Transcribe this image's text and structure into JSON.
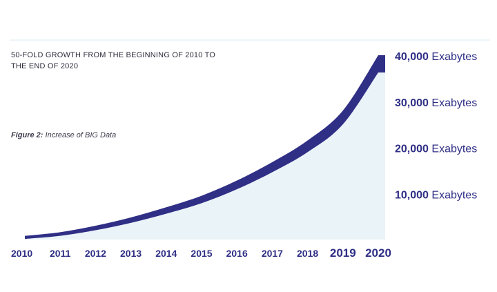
{
  "headline": "50-FOLD GROWTH FROM THE BEGINNING OF 2010 TO THE END OF 2020",
  "caption": {
    "label": "Figure 2:",
    "text": "Increase of BIG Data"
  },
  "colors": {
    "band": "#2f2f86",
    "fill": "#eaf3f8",
    "label": "#2f2f86",
    "divider": "#dce8f0"
  },
  "chart_data": {
    "type": "area",
    "title": "",
    "xlabel": "",
    "ylabel": "",
    "x": [
      "2010",
      "2011",
      "2012",
      "2013",
      "2014",
      "2015",
      "2016",
      "2017",
      "2018",
      "2019",
      "2020"
    ],
    "series": [
      {
        "values": [
          800,
          1600,
          3000,
          4800,
          7000,
          9500,
          12800,
          16800,
          21500,
          28000,
          40000
        ]
      }
    ],
    "yticks": [
      {
        "value": 10000,
        "label": "10,000",
        "unit": "Exabytes"
      },
      {
        "value": 20000,
        "label": "20,000",
        "unit": "Exabytes"
      },
      {
        "value": 30000,
        "label": "30,000",
        "unit": "Exabytes"
      },
      {
        "value": 40000,
        "label": "40,000",
        "unit": "Exabytes"
      }
    ],
    "ylim": [
      0,
      40000
    ],
    "grid": false,
    "legend": "none"
  }
}
